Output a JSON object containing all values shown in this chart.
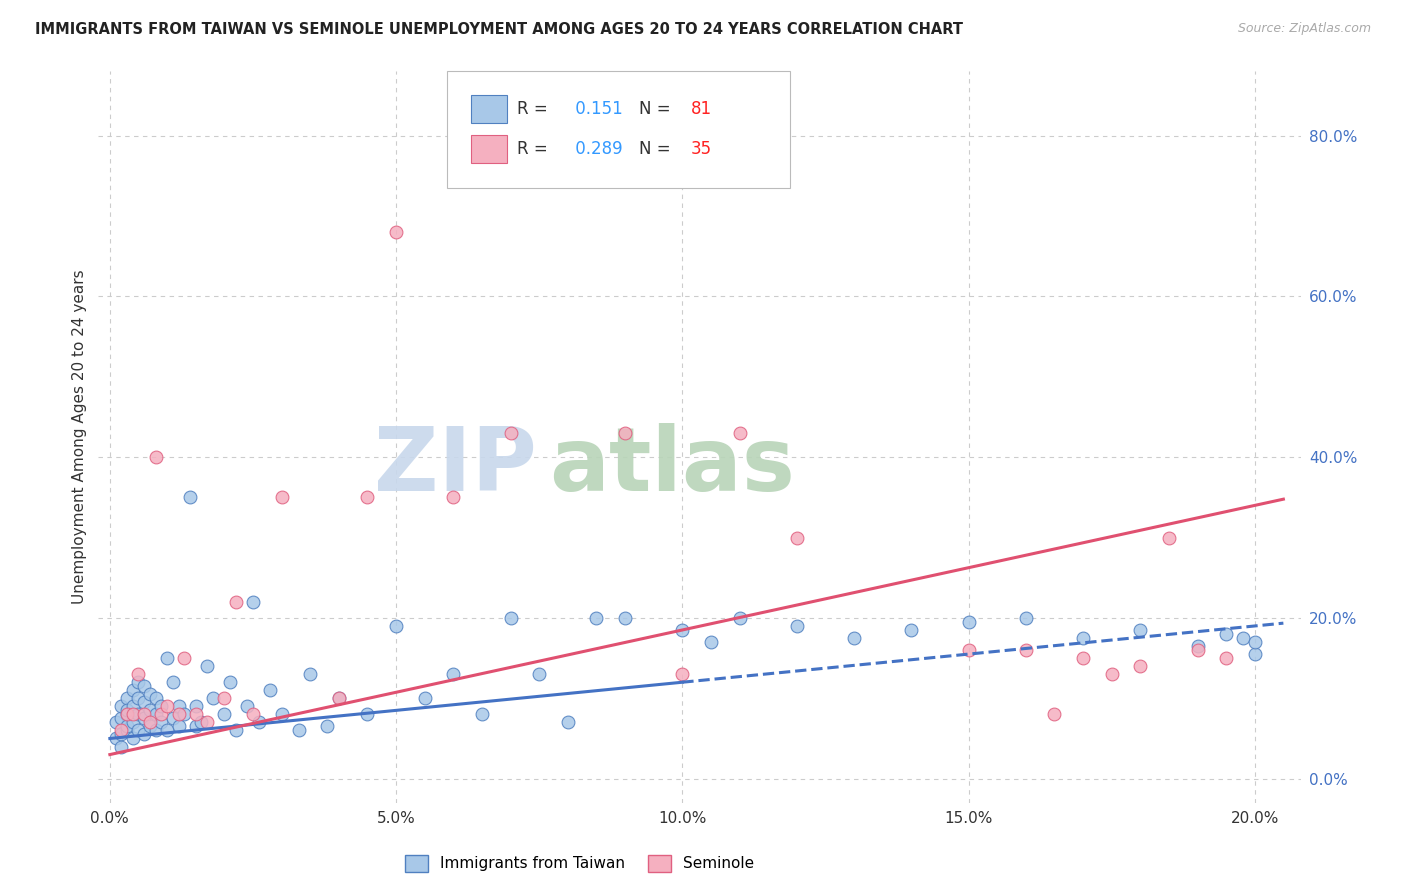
{
  "title": "IMMIGRANTS FROM TAIWAN VS SEMINOLE UNEMPLOYMENT AMONG AGES 20 TO 24 YEARS CORRELATION CHART",
  "source": "Source: ZipAtlas.com",
  "ylabel": "Unemployment Among Ages 20 to 24 years",
  "xlabel_ticks": [
    "0.0%",
    "5.0%",
    "10.0%",
    "15.0%",
    "20.0%"
  ],
  "xlabel_vals": [
    0.0,
    0.05,
    0.1,
    0.15,
    0.2
  ],
  "ylabel_ticks": [
    "0.0%",
    "20.0%",
    "40.0%",
    "60.0%",
    "80.0%"
  ],
  "ylabel_vals": [
    0.0,
    0.2,
    0.4,
    0.6,
    0.8
  ],
  "xlim": [
    -0.002,
    0.208
  ],
  "ylim": [
    -0.03,
    0.88
  ],
  "r_taiwan": 0.151,
  "n_taiwan": 81,
  "r_seminole": 0.289,
  "n_seminole": 35,
  "color_taiwan_fill": "#a8c8e8",
  "color_seminole_fill": "#f5b0c0",
  "color_taiwan_edge": "#5080c0",
  "color_seminole_edge": "#e06080",
  "color_taiwan_line": "#4472c4",
  "color_seminole_line": "#e05070",
  "color_rval": "#3399ff",
  "color_nval": "#ff2222",
  "taiwan_x": [
    0.001,
    0.001,
    0.002,
    0.002,
    0.002,
    0.002,
    0.003,
    0.003,
    0.003,
    0.003,
    0.003,
    0.004,
    0.004,
    0.004,
    0.004,
    0.005,
    0.005,
    0.005,
    0.005,
    0.006,
    0.006,
    0.006,
    0.006,
    0.007,
    0.007,
    0.007,
    0.008,
    0.008,
    0.008,
    0.009,
    0.009,
    0.01,
    0.01,
    0.011,
    0.011,
    0.012,
    0.012,
    0.013,
    0.014,
    0.015,
    0.015,
    0.016,
    0.017,
    0.018,
    0.02,
    0.021,
    0.022,
    0.024,
    0.025,
    0.026,
    0.028,
    0.03,
    0.033,
    0.035,
    0.038,
    0.04,
    0.045,
    0.05,
    0.055,
    0.06,
    0.065,
    0.07,
    0.075,
    0.08,
    0.085,
    0.09,
    0.1,
    0.105,
    0.11,
    0.12,
    0.13,
    0.14,
    0.15,
    0.16,
    0.17,
    0.18,
    0.19,
    0.195,
    0.198,
    0.2,
    0.2
  ],
  "taiwan_y": [
    0.05,
    0.07,
    0.055,
    0.075,
    0.09,
    0.04,
    0.06,
    0.08,
    0.1,
    0.065,
    0.085,
    0.05,
    0.07,
    0.09,
    0.11,
    0.06,
    0.08,
    0.1,
    0.12,
    0.055,
    0.075,
    0.095,
    0.115,
    0.065,
    0.085,
    0.105,
    0.06,
    0.08,
    0.1,
    0.07,
    0.09,
    0.06,
    0.15,
    0.075,
    0.12,
    0.065,
    0.09,
    0.08,
    0.35,
    0.065,
    0.09,
    0.07,
    0.14,
    0.1,
    0.08,
    0.12,
    0.06,
    0.09,
    0.22,
    0.07,
    0.11,
    0.08,
    0.06,
    0.13,
    0.065,
    0.1,
    0.08,
    0.19,
    0.1,
    0.13,
    0.08,
    0.2,
    0.13,
    0.07,
    0.2,
    0.2,
    0.185,
    0.17,
    0.2,
    0.19,
    0.175,
    0.185,
    0.195,
    0.2,
    0.175,
    0.185,
    0.165,
    0.18,
    0.175,
    0.155,
    0.17
  ],
  "seminole_x": [
    0.002,
    0.003,
    0.004,
    0.005,
    0.006,
    0.007,
    0.008,
    0.009,
    0.01,
    0.012,
    0.013,
    0.015,
    0.017,
    0.02,
    0.022,
    0.025,
    0.03,
    0.04,
    0.045,
    0.05,
    0.06,
    0.07,
    0.09,
    0.1,
    0.11,
    0.12,
    0.15,
    0.16,
    0.165,
    0.17,
    0.175,
    0.18,
    0.185,
    0.19,
    0.195
  ],
  "seminole_y": [
    0.06,
    0.08,
    0.08,
    0.13,
    0.08,
    0.07,
    0.4,
    0.08,
    0.09,
    0.08,
    0.15,
    0.08,
    0.07,
    0.1,
    0.22,
    0.08,
    0.35,
    0.1,
    0.35,
    0.68,
    0.35,
    0.43,
    0.43,
    0.13,
    0.43,
    0.3,
    0.16,
    0.16,
    0.08,
    0.15,
    0.13,
    0.14,
    0.3,
    0.16,
    0.15
  ],
  "watermark_zip_color": "#c8d8ec",
  "watermark_atlas_color": "#b8d4b8",
  "background_color": "#ffffff",
  "grid_color": "#cccccc",
  "tw_line_b": 0.05,
  "tw_line_m": 0.7,
  "sem_line_b": 0.03,
  "sem_line_m": 1.55
}
